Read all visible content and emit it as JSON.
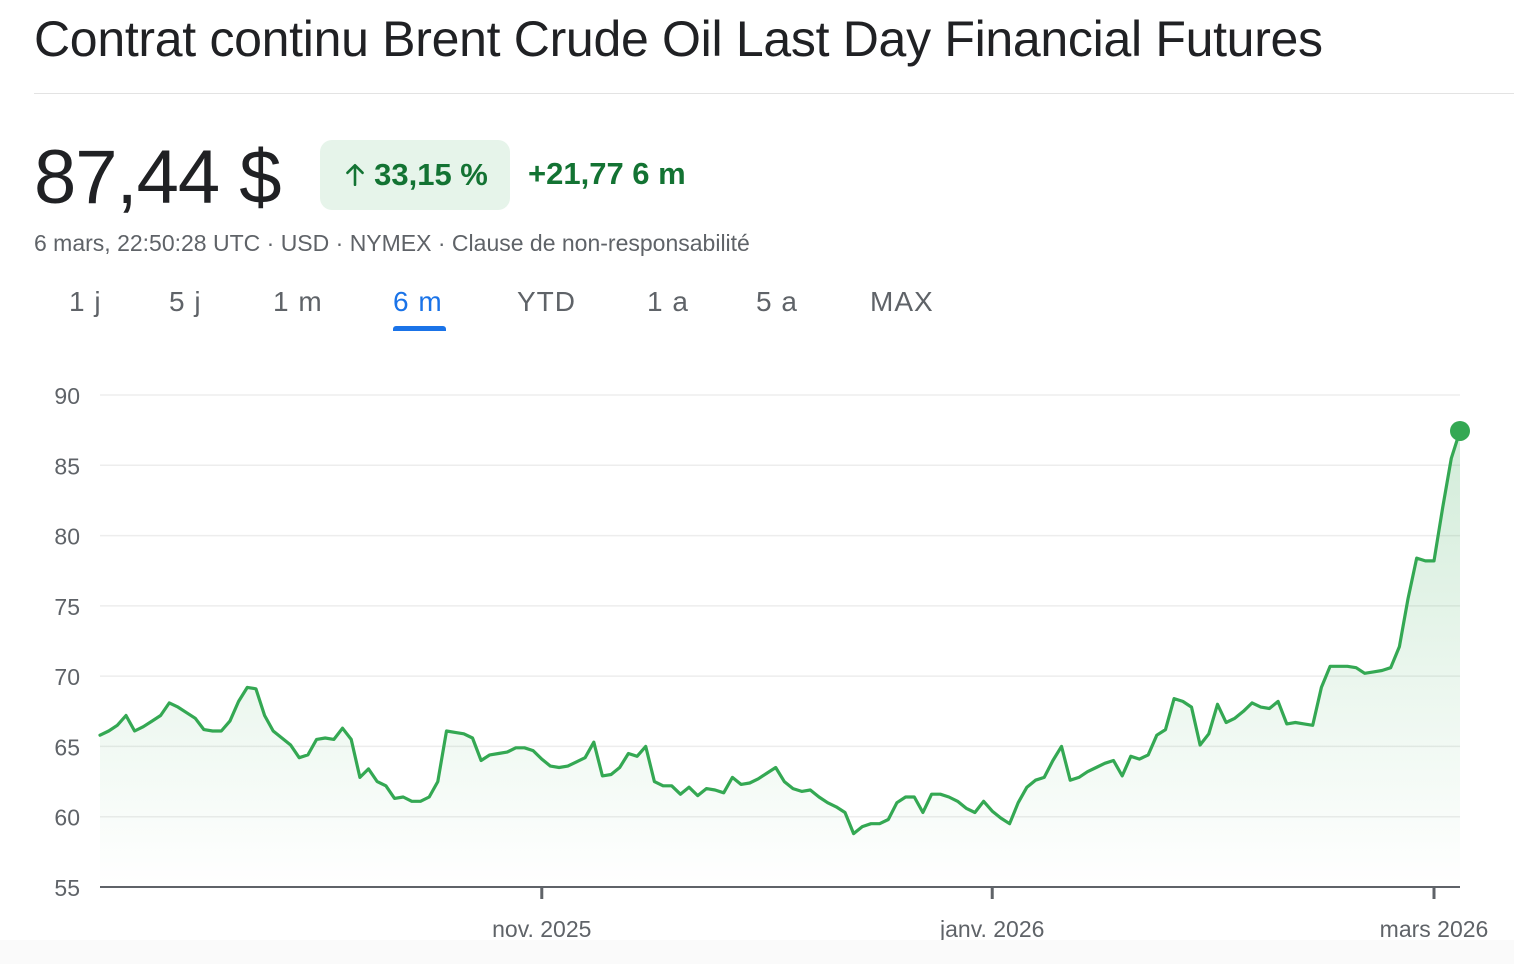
{
  "title": "Contrat continu Brent Crude Oil Last Day Financial Futures",
  "price": "87,44 $",
  "change": {
    "percent": "33,15 %",
    "absolute": "+21,77 6 m",
    "icon": "arrow-up-icon",
    "color": "#137333",
    "bg": "#e6f4ea"
  },
  "meta": "6 mars, 22:50:28 UTC · USD · NYMEX · Clause de non-responsabilité",
  "tabs": [
    {
      "label": "1 j",
      "active": false
    },
    {
      "label": "5 j",
      "active": false
    },
    {
      "label": "1 m",
      "active": false
    },
    {
      "label": "6 m",
      "active": true
    },
    {
      "label": "YTD",
      "active": false
    },
    {
      "label": "1 a",
      "active": false
    },
    {
      "label": "5 a",
      "active": false
    },
    {
      "label": "MAX",
      "active": false
    }
  ],
  "chart_data": {
    "type": "area",
    "title": "",
    "xlabel": "",
    "ylabel": "",
    "ylim": [
      55,
      90
    ],
    "y_ticks": [
      90,
      85,
      80,
      75,
      70,
      65,
      60,
      55
    ],
    "x_ticks": [
      {
        "label": "nov. 2025",
        "index": 51
      },
      {
        "label": "janv. 2026",
        "index": 103
      },
      {
        "label": "mars 2026",
        "index": 154
      }
    ],
    "grid": true,
    "line_color": "#34a853",
    "series": [
      {
        "values": [
          65.8,
          66.1,
          66.5,
          67.2,
          66.1,
          66.4,
          66.8,
          67.2,
          68.1,
          67.8,
          67.4,
          67.0,
          66.2,
          66.1,
          66.1,
          66.8,
          68.2,
          69.2,
          69.1,
          67.2,
          66.1,
          65.6,
          65.1,
          64.2,
          64.4,
          65.5,
          65.6,
          65.5,
          66.3,
          65.5,
          62.8,
          63.4,
          62.5,
          62.2,
          61.3,
          61.4,
          61.1,
          61.1,
          61.4,
          62.5,
          66.1,
          66.0,
          65.9,
          65.6,
          64.0,
          64.4,
          64.5,
          64.6,
          64.9,
          64.9,
          64.7,
          64.1,
          63.6,
          63.5,
          63.6,
          63.9,
          64.2,
          65.3,
          62.9,
          63.0,
          63.5,
          64.5,
          64.3,
          65.0,
          62.5,
          62.2,
          62.2,
          61.6,
          62.1,
          61.5,
          62.0,
          61.9,
          61.7,
          62.8,
          62.3,
          62.4,
          62.7,
          63.1,
          63.5,
          62.5,
          62.0,
          61.8,
          61.9,
          61.4,
          61.0,
          60.7,
          60.3,
          58.8,
          59.3,
          59.5,
          59.5,
          59.8,
          61.0,
          61.4,
          61.4,
          60.3,
          61.6,
          61.6,
          61.4,
          61.1,
          60.6,
          60.3,
          61.1,
          60.4,
          59.9,
          59.5,
          61.0,
          62.1,
          62.6,
          62.8,
          64.0,
          65.0,
          62.6,
          62.8,
          63.2,
          63.5,
          63.8,
          64.0,
          62.9,
          64.3,
          64.1,
          64.4,
          65.8,
          66.2,
          68.4,
          68.2,
          67.8,
          65.1,
          65.9,
          68.0,
          66.7,
          67.0,
          67.5,
          68.1,
          67.8,
          67.7,
          68.2,
          66.6,
          66.7,
          66.6,
          66.5,
          69.2,
          70.7,
          70.7,
          70.7,
          70.6,
          70.2,
          70.3,
          70.4,
          70.6,
          72.1,
          75.5,
          78.4,
          78.2,
          78.2,
          82.0,
          85.5,
          87.44
        ]
      }
    ]
  }
}
